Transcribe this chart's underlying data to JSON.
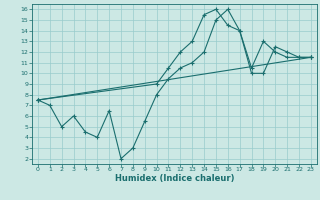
{
  "xlabel": "Humidex (Indice chaleur)",
  "bg_color": "#cce8e4",
  "grid_color": "#99cccc",
  "line_color": "#1a6e6e",
  "xlim": [
    -0.5,
    23.5
  ],
  "ylim": [
    1.5,
    16.5
  ],
  "xticks": [
    0,
    1,
    2,
    3,
    4,
    5,
    6,
    7,
    8,
    9,
    10,
    11,
    12,
    13,
    14,
    15,
    16,
    17,
    18,
    19,
    20,
    21,
    22,
    23
  ],
  "yticks": [
    2,
    3,
    4,
    5,
    6,
    7,
    8,
    9,
    10,
    11,
    12,
    13,
    14,
    15,
    16
  ],
  "line1_x": [
    0,
    1,
    2,
    3,
    4,
    5,
    6,
    7,
    8,
    9,
    10,
    11,
    12,
    13,
    14,
    15,
    16,
    17,
    18,
    19,
    20,
    21,
    22,
    23
  ],
  "line1_y": [
    7.5,
    7.0,
    5.0,
    6.0,
    4.5,
    4.0,
    6.5,
    2.0,
    3.0,
    5.5,
    8.0,
    9.5,
    10.5,
    11.0,
    12.0,
    15.0,
    16.0,
    14.0,
    10.0,
    10.0,
    12.5,
    12.0,
    11.5,
    11.5
  ],
  "line2_x": [
    0,
    10,
    11,
    12,
    13,
    14,
    15,
    16,
    17,
    18,
    19,
    20,
    21,
    22,
    23
  ],
  "line2_y": [
    7.5,
    9.0,
    10.5,
    12.0,
    13.0,
    15.5,
    16.0,
    14.5,
    14.0,
    10.5,
    13.0,
    12.0,
    11.5,
    11.5,
    11.5
  ],
  "line3_x": [
    0,
    23
  ],
  "line3_y": [
    7.5,
    11.5
  ]
}
